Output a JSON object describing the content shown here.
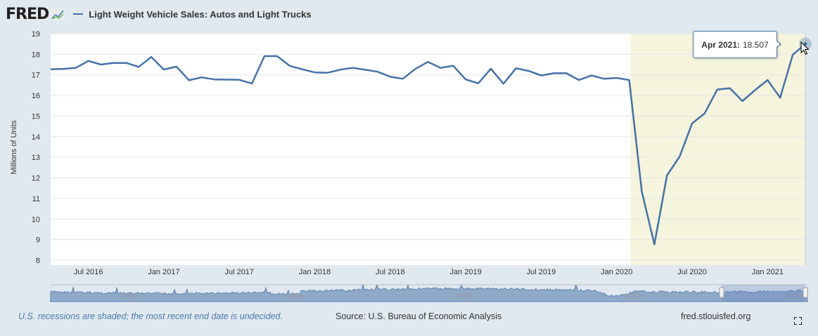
{
  "header": {
    "logo": "FRED",
    "series_title": "Light Weight Vehicle Sales: Autos and Light Trucks"
  },
  "tooltip": {
    "date": "Apr 2021:",
    "value": "18.507"
  },
  "footer": {
    "note": "U.S. recessions are shaded; the most recent end date is undecided.",
    "source": "Source: U.S. Bureau of Economic Analysis",
    "site": "fred.stlouisfed.org"
  },
  "navigator": {
    "labels": [
      "1980",
      "1990",
      "2000",
      "2010",
      "2020"
    ]
  },
  "colors": {
    "series": "#4572a7",
    "recession": "#f5f4dc",
    "background": "#e1e9f0"
  },
  "chart_data": {
    "type": "line",
    "title": "Light Weight Vehicle Sales: Autos and Light Trucks",
    "ylabel": "Millions of Units",
    "xlabel": "",
    "ylim": [
      8,
      19
    ],
    "yticks": [
      "8",
      "9",
      "10",
      "11",
      "12",
      "13",
      "14",
      "15",
      "16",
      "17",
      "18",
      "19"
    ],
    "xtick_labels": [
      "Jul 2016",
      "Jan 2017",
      "Jul 2017",
      "Jan 2018",
      "Jul 2018",
      "Jan 2019",
      "Jul 2019",
      "Jan 2020",
      "Jul 2020",
      "Jan 2021"
    ],
    "xtick_index": [
      3,
      9,
      15,
      21,
      27,
      33,
      39,
      45,
      51,
      57
    ],
    "x_start": "Apr 2016",
    "x_end": "Apr 2021",
    "frequency": "monthly",
    "grid": true,
    "recession_shading": {
      "start": "Feb 2020",
      "end": "Apr 2021"
    },
    "series": [
      {
        "name": "Light Weight Vehicle Sales: Autos and Light Trucks",
        "values": [
          17.27,
          17.29,
          17.34,
          17.68,
          17.5,
          17.58,
          17.58,
          17.39,
          17.87,
          17.26,
          17.4,
          16.74,
          16.88,
          16.78,
          16.77,
          16.76,
          16.58,
          17.91,
          17.91,
          17.44,
          17.27,
          17.12,
          17.1,
          17.25,
          17.34,
          17.25,
          17.15,
          16.91,
          16.81,
          17.29,
          17.63,
          17.34,
          17.44,
          16.78,
          16.59,
          17.3,
          16.57,
          17.32,
          17.19,
          16.97,
          17.08,
          17.08,
          16.75,
          16.97,
          16.81,
          16.85,
          16.75,
          11.33,
          8.77,
          12.12,
          13.03,
          14.64,
          15.13,
          16.29,
          16.35,
          15.73,
          16.26,
          16.75,
          15.89,
          17.97,
          18.507
        ]
      }
    ]
  }
}
